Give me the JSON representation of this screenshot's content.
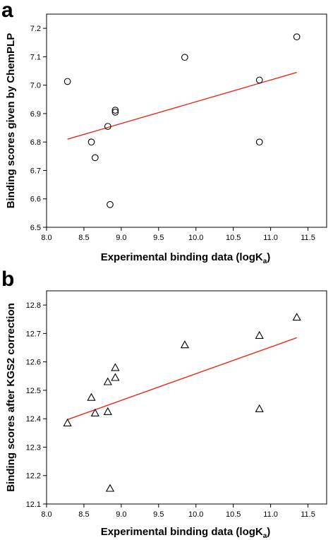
{
  "chart_data": [
    {
      "type": "scatter",
      "panel_label": "a",
      "xlabel_main": "Experimental binding data (logK",
      "xlabel_sub": "a",
      "xlabel_close": ")",
      "ylabel": "Binding scores given by ChemPLP",
      "xlim": [
        8.0,
        11.75
      ],
      "ylim": [
        6.5,
        7.25
      ],
      "xticks": [
        "8.0",
        "8.5",
        "9.0",
        "9.5",
        "10.0",
        "10.5",
        "11.0",
        "11.5"
      ],
      "yticks": [
        "6.5",
        "6.6",
        "6.7",
        "6.8",
        "6.9",
        "7.0",
        "7.1",
        "7.2"
      ],
      "marker": "circle",
      "points": [
        {
          "x": 8.28,
          "y": 7.013
        },
        {
          "x": 8.6,
          "y": 6.8
        },
        {
          "x": 8.65,
          "y": 6.745
        },
        {
          "x": 8.82,
          "y": 6.855
        },
        {
          "x": 8.85,
          "y": 6.58
        },
        {
          "x": 8.92,
          "y": 6.912
        },
        {
          "x": 8.92,
          "y": 6.905
        },
        {
          "x": 9.85,
          "y": 7.098
        },
        {
          "x": 10.85,
          "y": 7.018
        },
        {
          "x": 10.85,
          "y": 6.8
        },
        {
          "x": 11.35,
          "y": 7.17
        }
      ],
      "fit_line": {
        "x": [
          8.28,
          11.35
        ],
        "y": [
          6.81,
          7.045
        ],
        "color": "#e8291c"
      },
      "grid": false
    },
    {
      "type": "scatter",
      "panel_label": "b",
      "xlabel_main": "Experimental binding data (logK",
      "xlabel_sub": "a",
      "xlabel_close": ")",
      "ylabel": "Binding scores after KGS2 correction",
      "xlim": [
        8.0,
        11.75
      ],
      "ylim": [
        12.1,
        12.85
      ],
      "xticks": [
        "8.0",
        "8.5",
        "9.0",
        "9.5",
        "10.0",
        "10.5",
        "11.0",
        "11.5"
      ],
      "yticks": [
        "12.1",
        "12.2",
        "12.3",
        "12.4",
        "12.5",
        "12.6",
        "12.7",
        "12.8"
      ],
      "marker": "triangle",
      "points": [
        {
          "x": 8.28,
          "y": 12.385
        },
        {
          "x": 8.6,
          "y": 12.475
        },
        {
          "x": 8.65,
          "y": 12.42
        },
        {
          "x": 8.82,
          "y": 12.53
        },
        {
          "x": 8.82,
          "y": 12.425
        },
        {
          "x": 8.85,
          "y": 12.155
        },
        {
          "x": 8.92,
          "y": 12.58
        },
        {
          "x": 8.92,
          "y": 12.545
        },
        {
          "x": 9.85,
          "y": 12.66
        },
        {
          "x": 10.85,
          "y": 12.693
        },
        {
          "x": 10.85,
          "y": 12.435
        },
        {
          "x": 11.35,
          "y": 12.757
        }
      ],
      "fit_line": {
        "x": [
          8.28,
          11.35
        ],
        "y": [
          12.397,
          12.685
        ],
        "color": "#e8291c"
      },
      "grid": false
    }
  ]
}
